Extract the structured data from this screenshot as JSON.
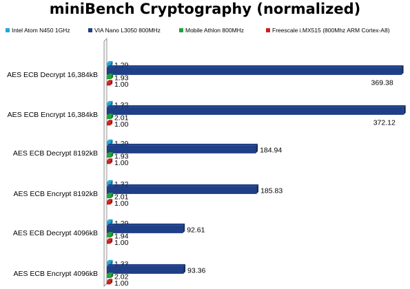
{
  "chart_data": {
    "type": "bar",
    "orientation": "horizontal",
    "title": "miniBench Cryptography (normalized)",
    "categories": [
      "AES ECB Decrypt 16,384kB",
      "AES ECB Encrypt 16,384kB",
      "AES ECB Decrypt 8192kB",
      "AES ECB Encrypt 8192kB",
      "AES ECB Decrypt 4096kB",
      "AES ECB Encrypt 4096kB"
    ],
    "series": [
      {
        "name": "Intel Atom N450 1GHz",
        "color": "#1fa8d8",
        "values": [
          1.29,
          1.32,
          1.29,
          1.32,
          1.29,
          1.33
        ]
      },
      {
        "name": "VIA Nano L3050 800MHz",
        "color": "#1f3f86",
        "values": [
          369.38,
          372.12,
          184.94,
          185.83,
          92.61,
          93.36
        ]
      },
      {
        "name": "Mobile Athlon 800MHz",
        "color": "#1fa33a",
        "values": [
          1.93,
          2.01,
          1.93,
          2.01,
          1.94,
          2.02
        ]
      },
      {
        "name": "Freescale i.MX515 (800Mhz ARM Cortex-A8)",
        "color": "#d01e1e",
        "values": [
          1.0,
          1.0,
          1.0,
          1.0,
          1.0,
          1.0
        ]
      }
    ],
    "xlim": [
      0,
      375
    ],
    "grid": false,
    "legend_position": "top"
  }
}
